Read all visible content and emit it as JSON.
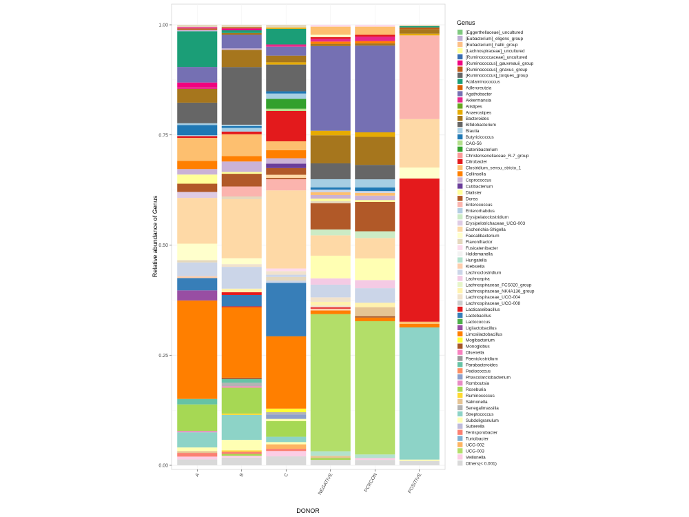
{
  "chart_data": {
    "type": "bar",
    "stacked": true,
    "xlabel": "DONOR",
    "ylabel": "Relative abundance of Genus",
    "ylim": [
      0,
      1
    ],
    "yticks": [
      "0.00",
      "0.25",
      "0.50",
      "0.75",
      "1.00"
    ],
    "categories": [
      "A",
      "B",
      "C",
      "NEGATIVE",
      "PCRCON",
      "POSITIVE"
    ],
    "legend": {
      "title": "Genus",
      "position": "right",
      "items": [
        {
          "name": "[Eggerthellaceae]_uncultured",
          "color": "#7fc97f"
        },
        {
          "name": "[Eubacterium]_eligens_group",
          "color": "#beaed4"
        },
        {
          "name": "[Eubacterium]_hallii_group",
          "color": "#fdc086"
        },
        {
          "name": "[Lachnospiraceae]_uncultured",
          "color": "#ffff99"
        },
        {
          "name": "[Ruminococcaceae]_uncultured",
          "color": "#386cb0"
        },
        {
          "name": "[Ruminococcus]_gauvreauii_group",
          "color": "#f0027f"
        },
        {
          "name": "[Ruminococcus]_gnavus_group",
          "color": "#bf5b17"
        },
        {
          "name": "[Ruminococcus]_torques_group",
          "color": "#666666"
        },
        {
          "name": "Acidaminococcus",
          "color": "#1b9e77"
        },
        {
          "name": "Adlercreutzia",
          "color": "#d95f02"
        },
        {
          "name": "Agathobacter",
          "color": "#7570b3"
        },
        {
          "name": "Akkermansia",
          "color": "#e7298a"
        },
        {
          "name": "Alistipes",
          "color": "#66a61e"
        },
        {
          "name": "Anaerostipes",
          "color": "#e6ab02"
        },
        {
          "name": "Bacteroides",
          "color": "#a6761d"
        },
        {
          "name": "Bifidobacterium",
          "color": "#666666"
        },
        {
          "name": "Blautia",
          "color": "#a6cee3"
        },
        {
          "name": "Butyricicoccus",
          "color": "#1f78b4"
        },
        {
          "name": "CAG-56",
          "color": "#b2df8a"
        },
        {
          "name": "Catenibacterium",
          "color": "#33a02c"
        },
        {
          "name": "Christensenellaceae_R-7_group",
          "color": "#fb9a99"
        },
        {
          "name": "Citrobacter",
          "color": "#e31a1c"
        },
        {
          "name": "Clostridium_sensu_stricto_1",
          "color": "#fdbf6f"
        },
        {
          "name": "Collinsella",
          "color": "#ff7f00"
        },
        {
          "name": "Coprococcus",
          "color": "#cab2d6"
        },
        {
          "name": "Cutibacterium",
          "color": "#6a3d9a"
        },
        {
          "name": "Dialister",
          "color": "#ffff99"
        },
        {
          "name": "Dorea",
          "color": "#b15928"
        },
        {
          "name": "Enterococcus",
          "color": "#fbb4ae"
        },
        {
          "name": "Enterorhabdus",
          "color": "#b3cde3"
        },
        {
          "name": "Erysipelatoclostridium",
          "color": "#ccebc5"
        },
        {
          "name": "Erysipelotrichaceae_UCG-003",
          "color": "#decbe4"
        },
        {
          "name": "Escherichia-Shigella",
          "color": "#fed9a6"
        },
        {
          "name": "Faecalibacterium",
          "color": "#ffffcc"
        },
        {
          "name": "Flavonifractor",
          "color": "#e5d8bd"
        },
        {
          "name": "Fusicatenibacter",
          "color": "#fddaec"
        },
        {
          "name": "Holdemanella",
          "color": "#f2f2f2"
        },
        {
          "name": "Hungatella",
          "color": "#b3e2cd"
        },
        {
          "name": "Klebsiella",
          "color": "#fdcdac"
        },
        {
          "name": "Lachnoclostridium",
          "color": "#cbd5e8"
        },
        {
          "name": "Lachnospira",
          "color": "#f4cae4"
        },
        {
          "name": "Lachnospiraceae_FCS020_group",
          "color": "#e6f5c9"
        },
        {
          "name": "Lachnospiraceae_NK4A136_group",
          "color": "#fff2ae"
        },
        {
          "name": "Lachnospiraceae_UCG-004",
          "color": "#f1e2cc"
        },
        {
          "name": "Lachnospiraceae_UCG-008",
          "color": "#cccccc"
        },
        {
          "name": "Lacticaseibacillus",
          "color": "#e41a1c"
        },
        {
          "name": "Lactobacillus",
          "color": "#377eb8"
        },
        {
          "name": "Lactococcus",
          "color": "#4daf4a"
        },
        {
          "name": "Ligilactobacillus",
          "color": "#984ea3"
        },
        {
          "name": "Limosilactobacillus",
          "color": "#ff7f00"
        },
        {
          "name": "Mogibacterium",
          "color": "#ffff33"
        },
        {
          "name": "Monoglobus",
          "color": "#a65628"
        },
        {
          "name": "Olsenella",
          "color": "#f781bf"
        },
        {
          "name": "Paeniclostridium",
          "color": "#999999"
        },
        {
          "name": "Parabacteroides",
          "color": "#66c2a5"
        },
        {
          "name": "Pediococcus",
          "color": "#fc8d62"
        },
        {
          "name": "Phascolarctobacterium",
          "color": "#8da0cb"
        },
        {
          "name": "Romboutsia",
          "color": "#e78ac3"
        },
        {
          "name": "Roseburia",
          "color": "#a6d854"
        },
        {
          "name": "Ruminococcus",
          "color": "#ffd92f"
        },
        {
          "name": "Salmonella",
          "color": "#e5c494"
        },
        {
          "name": "Senegalimassilia",
          "color": "#b3b3b3"
        },
        {
          "name": "Streptococcus",
          "color": "#8dd3c7"
        },
        {
          "name": "Subdoligranulum",
          "color": "#ffffb3"
        },
        {
          "name": "Sutterella",
          "color": "#bebada"
        },
        {
          "name": "Terrisporobacter",
          "color": "#fb8072"
        },
        {
          "name": "Turicibacter",
          "color": "#80b1d3"
        },
        {
          "name": "UCG-002",
          "color": "#fdb462"
        },
        {
          "name": "UCG-003",
          "color": "#b3de69"
        },
        {
          "name": "Veillonella",
          "color": "#fccde5"
        },
        {
          "name": "Others(< 0.001)",
          "color": "#d9d9d9"
        }
      ]
    },
    "series_by_category": {
      "A": [
        [
          "Others(< 0.001)",
          0.013
        ],
        [
          "Veillonella",
          0.006
        ],
        [
          "Terrisporobacter",
          0.008
        ],
        [
          "Salmonella",
          0.004
        ],
        [
          "Subdoligranulum",
          0.008
        ],
        [
          "Streptococcus",
          0.033
        ],
        [
          "Romboutsia",
          0.003
        ],
        [
          "Roseburia",
          0.058
        ],
        [
          "Parabacteroides",
          0.012
        ],
        [
          "Limosilactobacillus",
          0.215
        ],
        [
          "Ligilactobacillus",
          0.022
        ],
        [
          "Lactobacillus",
          0.027
        ],
        [
          "Klebsiella",
          0.004
        ],
        [
          "Lachnoclostridium",
          0.03
        ],
        [
          "Flavonifractor",
          0.005
        ],
        [
          "Faecalibacterium",
          0.036
        ],
        [
          "Escherichia-Shigella",
          0.1
        ],
        [
          "Erysipelotrichaceae_UCG-003",
          0.013
        ],
        [
          "Dorea",
          0.018
        ],
        [
          "Dialister",
          0.02
        ],
        [
          "Coprococcus",
          0.012
        ],
        [
          "Collinsella",
          0.018
        ],
        [
          "Clostridium_sensu_stricto_1",
          0.05
        ],
        [
          "Citrobacter",
          0.004
        ],
        [
          "Blautia",
          0.002
        ],
        [
          "Butyricicoccus",
          0.022
        ],
        [
          "Blautia",
          0.004
        ],
        [
          "Bifidobacterium",
          0.045
        ],
        [
          "Bacteroides",
          0.03
        ],
        [
          "Akkermansia",
          0.004
        ],
        [
          "[Ruminococcus]_gauvreauii_group",
          0.01
        ],
        [
          "Agathobacter",
          0.034
        ],
        [
          "Acidaminococcus",
          0.078
        ],
        [
          "Coprococcus",
          0.003
        ],
        [
          "[Ruminococcus]_gnavus_group",
          0.003
        ],
        [
          "Akkermansia",
          0.003
        ],
        [
          "Flavonifractor",
          0.005
        ]
      ],
      "B": [
        [
          "Others(< 0.001)",
          0.017
        ],
        [
          "Veillonella",
          0.004
        ],
        [
          "Roseburia",
          0.004
        ],
        [
          "Terrisporobacter",
          0.005
        ],
        [
          "Ruminococcus",
          0.003
        ],
        [
          "Subdoligranulum",
          0.023
        ],
        [
          "Streptococcus",
          0.055
        ],
        [
          "Ruminococcus",
          0.003
        ],
        [
          "Roseburia",
          0.057
        ],
        [
          "Olsenella",
          0.003
        ],
        [
          "Senegalimassilia",
          0.008
        ],
        [
          "Parabacteroides",
          0.008
        ],
        [
          "Monoglobus",
          0.003
        ],
        [
          "Limosilactobacillus",
          0.155
        ],
        [
          "Lacticaseibacillus",
          0.002
        ],
        [
          "Lactobacillus",
          0.025
        ],
        [
          "Lacticaseibacillus",
          0.006
        ],
        [
          "Lachnospiraceae_NK4A136_group",
          0.008
        ],
        [
          "Lachnoclostridium",
          0.048
        ],
        [
          "Lachnospiraceae_UCG-004",
          0.006
        ],
        [
          "Faecalibacterium",
          0.013
        ],
        [
          "Escherichia-Shigella",
          0.13
        ],
        [
          "Flavonifractor",
          0.006
        ],
        [
          "Enterococcus",
          0.022
        ],
        [
          "Dorea",
          0.028
        ],
        [
          "Dialister",
          0.004
        ],
        [
          "Coprococcus",
          0.023
        ],
        [
          "Collinsella",
          0.012
        ],
        [
          "Clostridium_sensu_stricto_1",
          0.048
        ],
        [
          "Citrobacter",
          0.006
        ],
        [
          "Blautia",
          0.008
        ],
        [
          "Butyricicoccus",
          0.004
        ],
        [
          "Blautia",
          0.003
        ],
        [
          "Bifidobacterium",
          0.127
        ],
        [
          "Bacteroides",
          0.038
        ],
        [
          "Coprococcus",
          0.003
        ],
        [
          "Agathobacter",
          0.03
        ],
        [
          "Bacteroides",
          0.004
        ],
        [
          "Acidaminococcus",
          0.006
        ],
        [
          "[Ruminococcus]_gauvreauii_group",
          0.004
        ],
        [
          "[Ruminococcus]_gnavus_group",
          0.003
        ],
        [
          "Flavonifractor",
          0.005
        ]
      ],
      "C": [
        [
          "Others(< 0.001)",
          0.02
        ],
        [
          "Veillonella",
          0.012
        ],
        [
          "Terrisporobacter",
          0.005
        ],
        [
          "UCG-002",
          0.01
        ],
        [
          "Subdoligranulum",
          0.005
        ],
        [
          "Streptococcus",
          0.012
        ],
        [
          "Roseburia",
          0.035
        ],
        [
          "Subdoligranulum",
          0.005
        ],
        [
          "Phascolarctobacterium",
          0.01
        ],
        [
          "Senegalimassilia",
          0.005
        ],
        [
          "Mogibacterium",
          0.008
        ],
        [
          "Limosilactobacillus",
          0.162
        ],
        [
          "Lactobacillus",
          0.12
        ],
        [
          "Lachnoclostridium",
          0.005
        ],
        [
          "Flavonifractor",
          0.008
        ],
        [
          "Lachnoclostridium",
          0.005
        ],
        [
          "Lachnospiraceae_UCG-004",
          0.008
        ],
        [
          "Fusicatenibacter",
          0.006
        ],
        [
          "Escherichia-Shigella",
          0.175
        ],
        [
          "Enterococcus",
          0.025
        ],
        [
          "Dorea",
          0.003
        ],
        [
          "Escherichia-Shigella",
          0.007
        ],
        [
          "Dorea",
          0.015
        ],
        [
          "Cutibacterium",
          0.01
        ],
        [
          "Coprococcus",
          0.012
        ],
        [
          "Collinsella",
          0.018
        ],
        [
          "Clostridium_sensu_stricto_1",
          0.02
        ],
        [
          "Citrobacter",
          0.068
        ],
        [
          "CAG-56",
          0.005
        ],
        [
          "Catenibacterium",
          0.022
        ],
        [
          "Blautia",
          0.012
        ],
        [
          "Butyricicoccus",
          0.005
        ],
        [
          "Bifidobacterium",
          0.06
        ],
        [
          "Anaerostipes",
          0.005
        ],
        [
          "Bacteroides",
          0.015
        ],
        [
          "Agathobacter",
          0.02
        ],
        [
          "Akkermansia",
          0.005
        ],
        [
          "Acidaminococcus",
          0.035
        ],
        [
          "Anaerostipes",
          0.003
        ],
        [
          "Flavonifractor",
          0.006
        ]
      ],
      "NEGATIVE": [
        [
          "Others(< 0.001)",
          0.012
        ],
        [
          "Roseburia",
          0.004
        ],
        [
          "Salmonella",
          0.005
        ],
        [
          "Hungatella",
          0.01
        ],
        [
          "UCG-003",
          0.303
        ],
        [
          "Collinsella",
          0.008
        ],
        [
          "Klebsiella",
          0.004
        ],
        [
          "Lacticaseibacillus",
          0.003
        ],
        [
          "Lachnospiraceae_UCG-004",
          0.004
        ],
        [
          "Lachnospiraceae_NK4A136_group",
          0.008
        ],
        [
          "Lachnospiraceae_UCG-004",
          0.01
        ],
        [
          "Lachnoclostridium",
          0.028
        ],
        [
          "Lachnospira",
          0.014
        ],
        [
          "Subdoligranulum",
          0.05
        ],
        [
          "Escherichia-Shigella",
          0.045
        ],
        [
          "Erysipelatoclostridium",
          0.013
        ],
        [
          "Dorea",
          0.058
        ],
        [
          "Flavonifractor",
          0.005
        ],
        [
          "Dialister",
          0.005
        ],
        [
          "Coprococcus",
          0.008
        ],
        [
          "Clostridium_sensu_stricto_1",
          0.006
        ],
        [
          "Lachnoclostridium",
          0.006
        ],
        [
          "Butyricicoccus",
          0.005
        ],
        [
          "Blautia",
          0.018
        ],
        [
          "Bifidobacterium",
          0.035
        ],
        [
          "Bacteroides",
          0.062
        ],
        [
          "Anaerostipes",
          0.01
        ],
        [
          "Agathobacter",
          0.187
        ],
        [
          "Bacteroides",
          0.005
        ],
        [
          "Collinsella",
          0.005
        ],
        [
          "Akkermansia",
          0.006
        ],
        [
          "Lacticaseibacillus",
          0.004
        ],
        [
          "Faecalibacterium",
          0.005
        ],
        [
          "Clostridium_sensu_stricto_1",
          0.018
        ],
        [
          "Fusicatenibacter",
          0.004
        ]
      ],
      "PCRCON": [
        [
          "Others(< 0.001)",
          0.012
        ],
        [
          "Veillonella",
          0.004
        ],
        [
          "Hungatella",
          0.008
        ],
        [
          "UCG-003",
          0.295
        ],
        [
          "Collinsella",
          0.008
        ],
        [
          "Monoglobus",
          0.003
        ],
        [
          "Salmonella",
          0.02
        ],
        [
          "Lachnospiraceae_NK4A136_group",
          0.01
        ],
        [
          "Lachnoclostridium",
          0.032
        ],
        [
          "Lachnospira",
          0.018
        ],
        [
          "Subdoligranulum",
          0.048
        ],
        [
          "Escherichia-Shigella",
          0.045
        ],
        [
          "Erysipelatoclostridium",
          0.015
        ],
        [
          "Dorea",
          0.065
        ],
        [
          "Dialister",
          0.004
        ],
        [
          "Coprococcus",
          0.01
        ],
        [
          "Clostridium_sensu_stricto_1",
          0.006
        ],
        [
          "Lachnoclostridium",
          0.004
        ],
        [
          "Butyricicoccus",
          0.008
        ],
        [
          "Blautia",
          0.018
        ],
        [
          "Bifidobacterium",
          0.032
        ],
        [
          "Bacteroides",
          0.062
        ],
        [
          "Anaerostipes",
          0.01
        ],
        [
          "Agathobacter",
          0.192
        ],
        [
          "Bacteroides",
          0.005
        ],
        [
          "Collinsella",
          0.005
        ],
        [
          "Akkermansia",
          0.01
        ],
        [
          "Citrobacter",
          0.004
        ],
        [
          "Clostridium_sensu_stricto_1",
          0.018
        ],
        [
          "Fusicatenibacter",
          0.004
        ]
      ],
      "POSITIVE": [
        [
          "Others(< 0.001)",
          0.01
        ],
        [
          "Subdoligranulum",
          0.003
        ],
        [
          "Streptococcus",
          0.3
        ],
        [
          "Limosilactobacillus",
          0.008
        ],
        [
          "Clostridium_sensu_stricto_1",
          0.005
        ],
        [
          "Lacticaseibacillus",
          0.325
        ],
        [
          "Faecalibacterium",
          0.025
        ],
        [
          "Escherichia-Shigella",
          0.11
        ],
        [
          "Enterococcus",
          0.19
        ],
        [
          "Anaerostipes",
          0.004
        ],
        [
          "Bacteroides",
          0.01
        ],
        [
          "[Ruminococcus]_gnavus_group",
          0.004
        ],
        [
          "Acidaminococcus",
          0.003
        ],
        [
          "Flavonifractor",
          0.003
        ]
      ]
    }
  }
}
